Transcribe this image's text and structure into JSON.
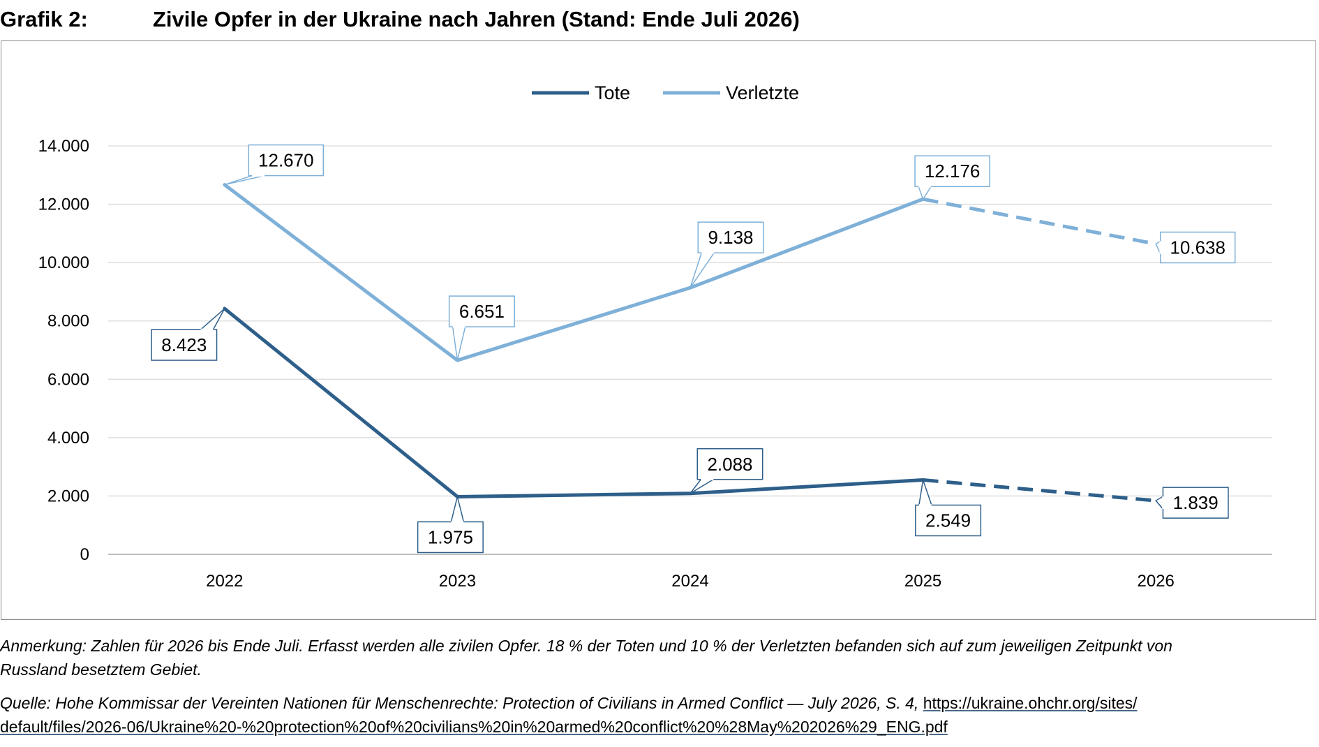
{
  "heading": {
    "number": "Grafik 2:",
    "title": "Zivile Opfer in der Ukraine nach Jahren (Stand: Ende Juli 2026)"
  },
  "colors": {
    "tote": "#2e5f8a",
    "verletzte": "#7eb0d8",
    "grid": "#d9d9d9",
    "axis": "#bfbfbf"
  },
  "chart_data": {
    "type": "line",
    "categories": [
      "2022",
      "2023",
      "2024",
      "2025",
      "2026"
    ],
    "ylim": [
      0,
      14000
    ],
    "yticks": [
      0,
      2000,
      4000,
      6000,
      8000,
      10000,
      12000,
      14000
    ],
    "ytick_labels": [
      "0",
      "2.000",
      "4.000",
      "6.000",
      "8.000",
      "10.000",
      "12.000",
      "14.000"
    ],
    "grid": "horizontal",
    "legend": "top-center",
    "dashed_from_index": 3,
    "series": [
      {
        "name": "Tote",
        "color": "#2e5f8a",
        "values": [
          8423,
          1975,
          2088,
          2549,
          1839
        ],
        "labels": [
          "8.423",
          "1.975",
          "2.088",
          "2.549",
          "1.839"
        ]
      },
      {
        "name": "Verletzte",
        "color": "#7eb0d8",
        "values": [
          12670,
          6651,
          9138,
          12176,
          10638
        ],
        "labels": [
          "12.670",
          "6.651",
          "9.138",
          "12.176",
          "10.638"
        ]
      }
    ]
  },
  "footnote": {
    "note_line1": "Anmerkung: Zahlen für 2026 bis Ende Juli. Erfasst werden alle zivilen Opfer. 18 % der Toten und 10 % der Verletzten befanden sich auf zum jeweiligen Zeitpunkt von",
    "note_line2": "Russland besetztem Gebiet.",
    "source_text": "Quelle: Hohe Kommissar der Vereinten Nationen für Menschenrechte: Protection of Civilians in Armed Conflict — July 2026, S. 4, ",
    "source_url_part1": "https://ukraine.ohchr.org/sites/",
    "source_url_part2": "default/files/2026-06/Ukraine%20-%20protection%20of%20civilians%20in%20armed%20conflict%20%28May%202026%29_ENG.pdf"
  }
}
